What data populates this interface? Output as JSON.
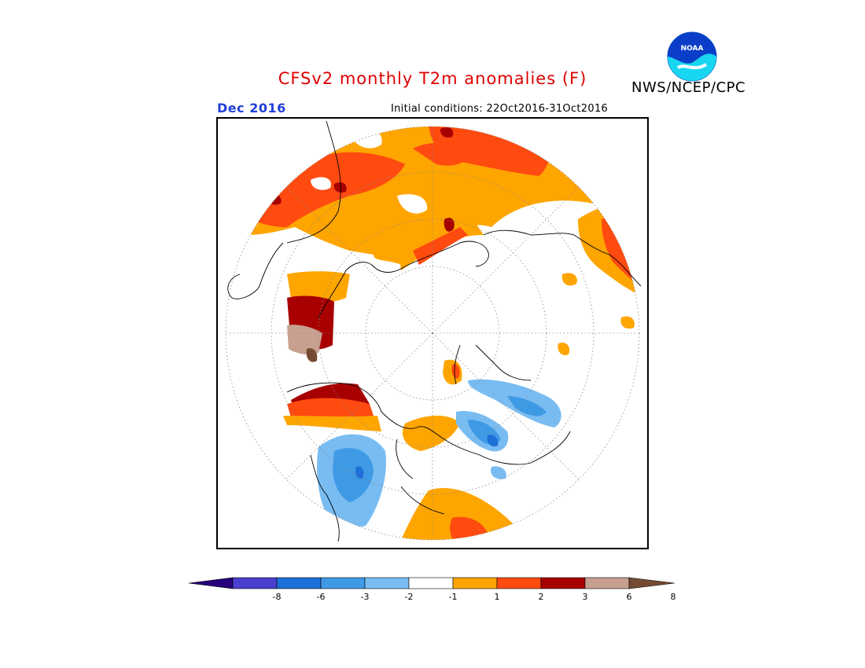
{
  "title": "CFSv2 monthly T2m anomalies (F)",
  "agency": "NWS/NCEP/CPC",
  "logo_text": "NOAA",
  "valid_month": "Dec 2016",
  "initial_conditions": "Initial conditions: 22Oct2016-31Oct2016",
  "colorbar": {
    "colors": [
      "#26007a",
      "#4a3fce",
      "#1e6fd8",
      "#3f9ae6",
      "#78bcf2",
      "#ffffff",
      "#ffa500",
      "#ff4a10",
      "#a80000",
      "#c8a090",
      "#744a32"
    ],
    "ticks": [
      "-8",
      "-6",
      "-3",
      "-2",
      "-1",
      "1",
      "2",
      "3",
      "6",
      "8"
    ]
  }
}
